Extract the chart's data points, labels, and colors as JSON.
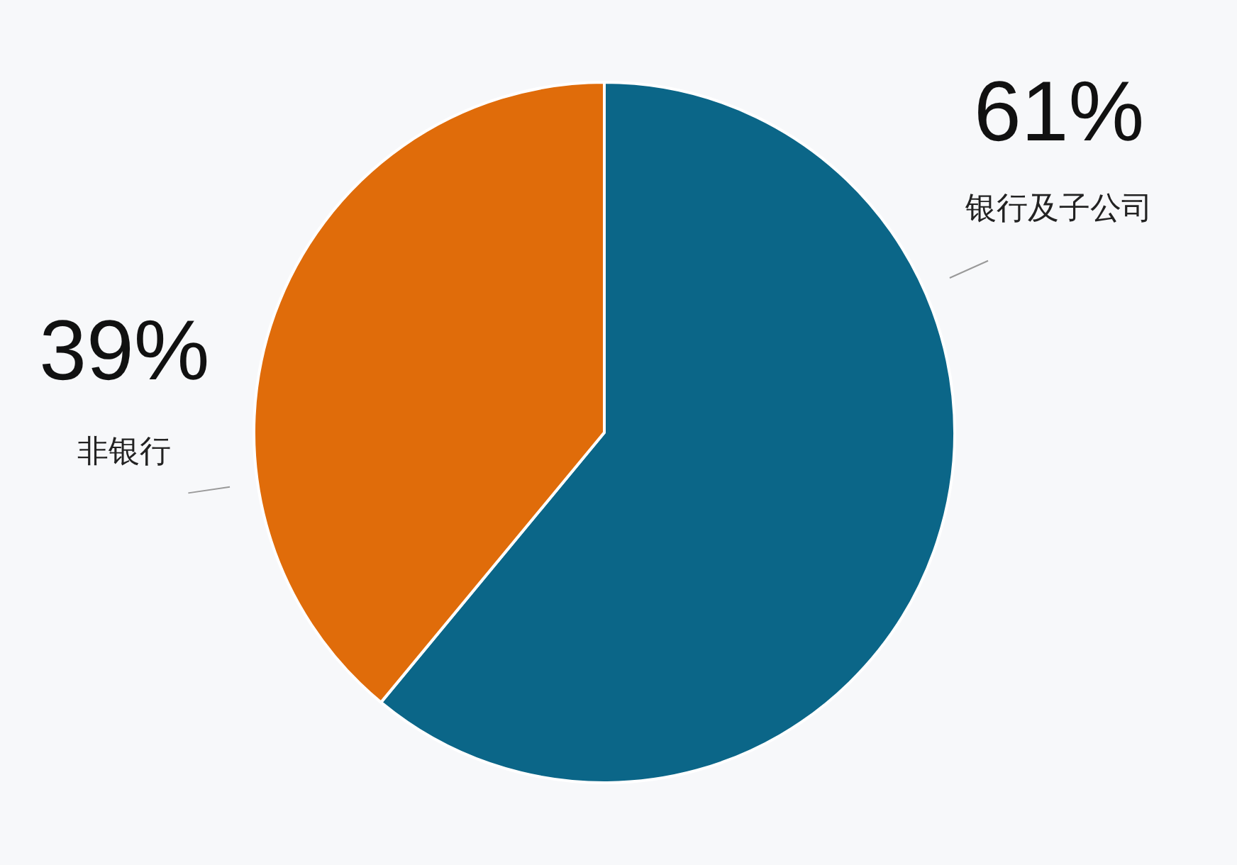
{
  "chart_data": {
    "type": "pie",
    "categories": [
      "银行及子公司",
      "非银行"
    ],
    "values": [
      61,
      39
    ],
    "colors": [
      "#0b6688",
      "#e06c0a"
    ],
    "value_labels": [
      "61%",
      "39%"
    ]
  }
}
